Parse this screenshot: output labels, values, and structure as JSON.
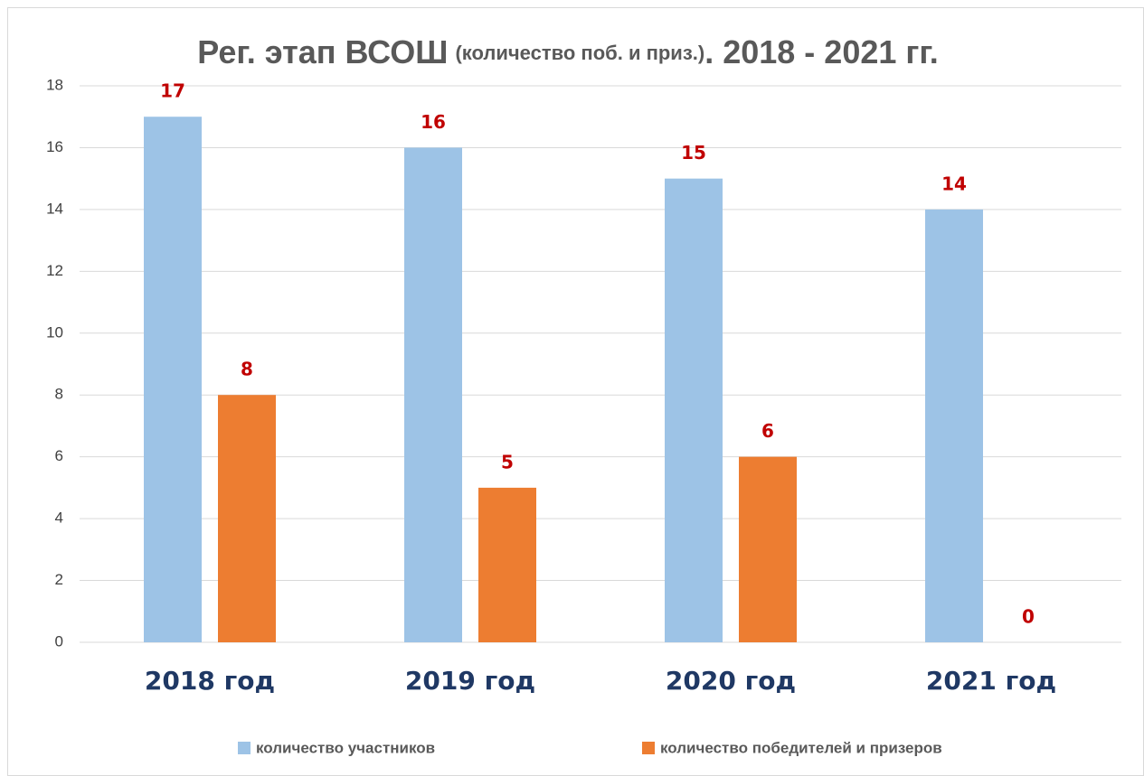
{
  "chart_data": {
    "type": "bar",
    "title": [
      "Рег. этап ВСОШ",
      "(количество поб. и приз.)",
      ". 2018 - 2021 гг."
    ],
    "categories": [
      "2018 год",
      "2019 год",
      "2020 год",
      "2021 год"
    ],
    "series": [
      {
        "name": "количество участников",
        "color": "#9dc3e6",
        "values": [
          17,
          16,
          15,
          14
        ]
      },
      {
        "name": "количество победителей и призеров",
        "color": "#ed7d31",
        "values": [
          8,
          5,
          6,
          0
        ]
      }
    ],
    "ylim": [
      0,
      18
    ],
    "yticks": [
      0,
      2,
      4,
      6,
      8,
      10,
      12,
      14,
      16,
      18
    ],
    "grid": true,
    "legend": "bottom"
  }
}
